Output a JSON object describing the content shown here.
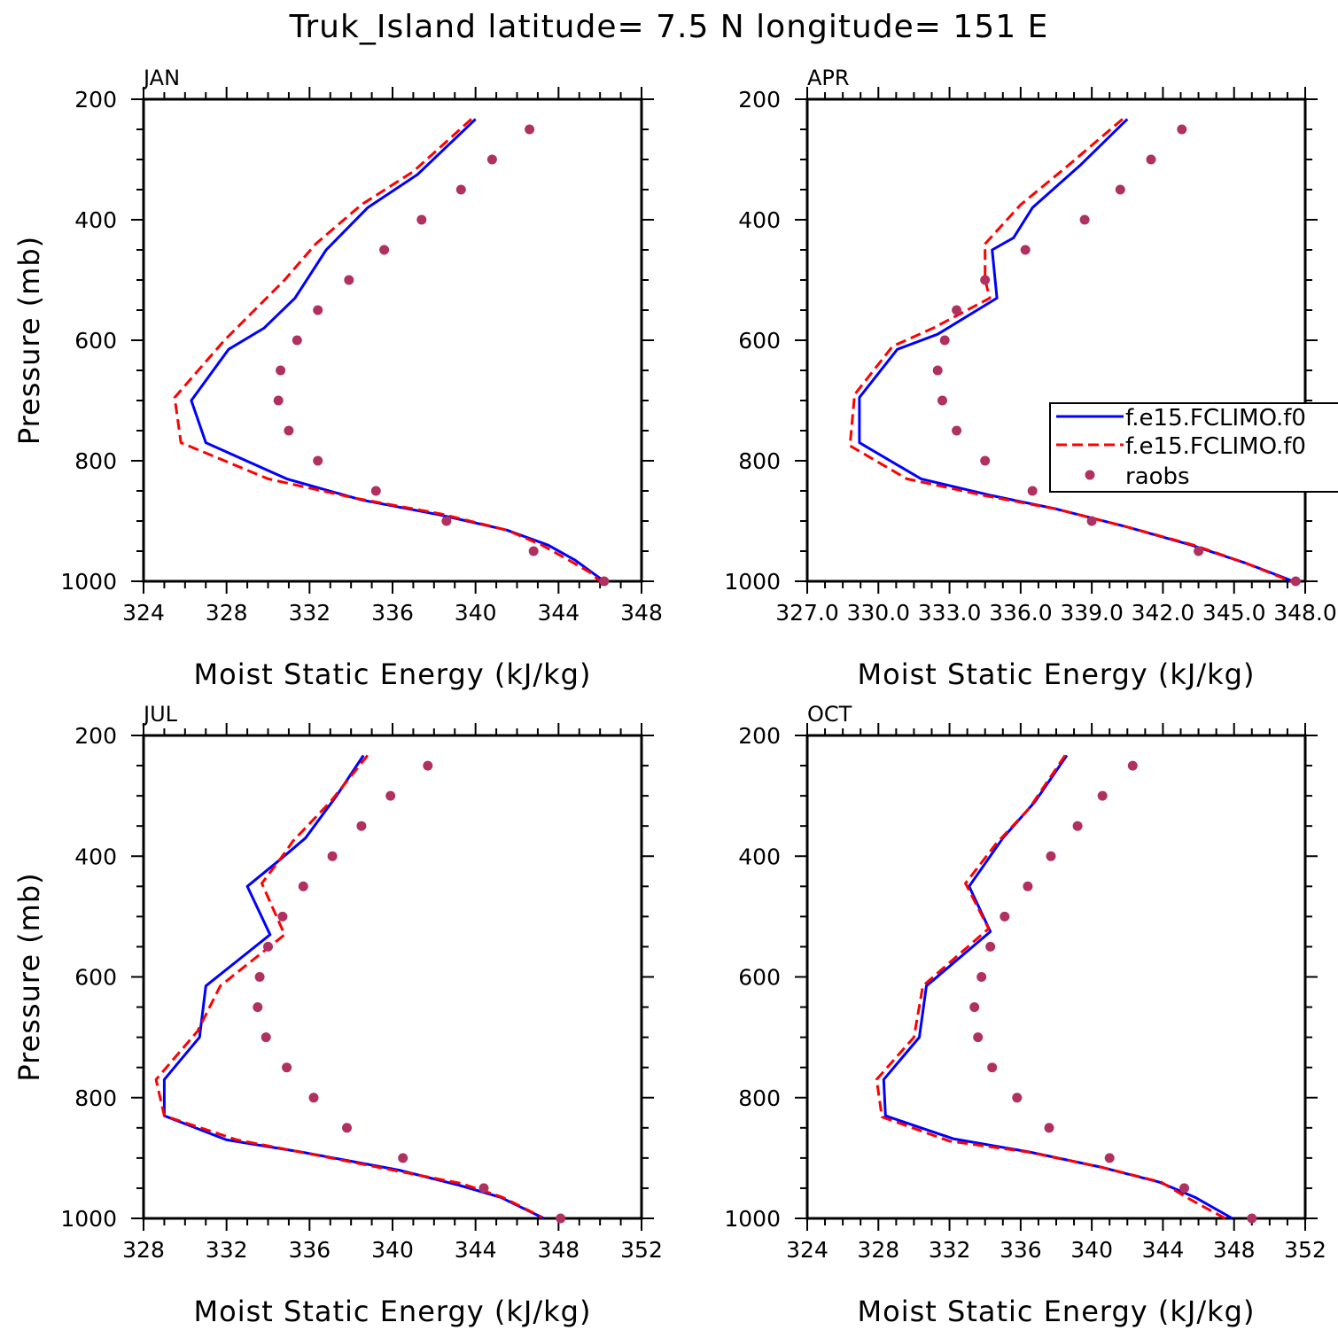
{
  "title": "Truk_Island  latitude= 7.5 N longitude= 151 E",
  "colors": {
    "model1": "#0000ff",
    "model2": "#ff0000",
    "raobs": "#b03060",
    "axis": "#000000"
  },
  "legend": [
    "f.e15.FCLIMO.f0",
    "f.e15.FCLIMO.f0",
    "raobs"
  ],
  "chart_data": [
    {
      "type": "line",
      "panel": "JAN",
      "xlabel": "Moist Static Energy (kJ/kg)",
      "ylabel": "Pressure (mb)",
      "xlim": [
        324,
        348
      ],
      "xticks": [
        "324",
        "328",
        "332",
        "336",
        "340",
        "344",
        "348"
      ],
      "ylim": [
        1000,
        200
      ],
      "yticks": [
        "200",
        "400",
        "600",
        "800",
        "1000"
      ],
      "series": [
        {
          "points": [
            [
              340.0,
              233
            ],
            [
              337.2,
              325
            ],
            [
              334.8,
              380
            ],
            [
              332.8,
              450
            ],
            [
              331.3,
              530
            ],
            [
              329.8,
              580
            ],
            [
              328.1,
              615
            ],
            [
              326.3,
              700
            ],
            [
              327.0,
              770
            ],
            [
              330.9,
              830
            ],
            [
              334.5,
              865
            ],
            [
              338.3,
              890
            ],
            [
              341.5,
              915
            ],
            [
              343.5,
              940
            ],
            [
              344.8,
              965
            ],
            [
              345.6,
              985
            ],
            [
              346.2,
              1000
            ]
          ]
        },
        {
          "points": [
            [
              339.8,
              233
            ],
            [
              337.0,
              320
            ],
            [
              334.5,
              375
            ],
            [
              332.3,
              440
            ],
            [
              330.8,
              500
            ],
            [
              329.2,
              555
            ],
            [
              327.9,
              600
            ],
            [
              325.5,
              695
            ],
            [
              325.8,
              770
            ],
            [
              330.0,
              830
            ],
            [
              334.2,
              862
            ],
            [
              338.3,
              888
            ],
            [
              341.5,
              915
            ],
            [
              343.2,
              940
            ],
            [
              344.5,
              965
            ],
            [
              345.5,
              985
            ],
            [
              346.0,
              1000
            ]
          ]
        },
        {
          "points": [
            [
              342.6,
              250
            ],
            [
              340.8,
              300
            ],
            [
              339.3,
              350
            ],
            [
              337.4,
              400
            ],
            [
              335.6,
              450
            ],
            [
              333.9,
              500
            ],
            [
              332.4,
              550
            ],
            [
              331.4,
              600
            ],
            [
              330.6,
              650
            ],
            [
              330.5,
              700
            ],
            [
              331.0,
              750
            ],
            [
              332.4,
              800
            ],
            [
              335.2,
              850
            ],
            [
              338.6,
              900
            ],
            [
              342.8,
              950
            ],
            [
              346.2,
              1000
            ]
          ]
        }
      ]
    },
    {
      "type": "line",
      "panel": "APR",
      "xlabel": "Moist Static Energy (kJ/kg)",
      "ylabel": "",
      "xlim": [
        327,
        348
      ],
      "xticks": [
        "327.0",
        "330.0",
        "333.0",
        "336.0",
        "339.0",
        "342.0",
        "345.0",
        "348.0"
      ],
      "ylim": [
        1000,
        200
      ],
      "yticks": [
        "200",
        "400",
        "600",
        "800",
        "1000"
      ],
      "series": [
        {
          "points": [
            [
              340.5,
              233
            ],
            [
              338.5,
              310
            ],
            [
              336.5,
              380
            ],
            [
              335.7,
              430
            ],
            [
              334.8,
              450
            ],
            [
              335.0,
              530
            ],
            [
              332.5,
              590
            ],
            [
              330.8,
              615
            ],
            [
              329.2,
              695
            ],
            [
              329.2,
              770
            ],
            [
              331.8,
              830
            ],
            [
              334.8,
              858
            ],
            [
              337.5,
              880
            ],
            [
              340.5,
              910
            ],
            [
              343.2,
              940
            ],
            [
              345.5,
              970
            ],
            [
              347.5,
              1000
            ]
          ]
        },
        {
          "points": [
            [
              340.3,
              233
            ],
            [
              338.0,
              310
            ],
            [
              336.0,
              375
            ],
            [
              334.5,
              440
            ],
            [
              334.5,
              500
            ],
            [
              334.7,
              530
            ],
            [
              332.3,
              580
            ],
            [
              330.6,
              610
            ],
            [
              329.0,
              690
            ],
            [
              328.8,
              775
            ],
            [
              331.2,
              830
            ],
            [
              334.5,
              858
            ],
            [
              337.5,
              880
            ],
            [
              340.5,
              910
            ],
            [
              343.3,
              940
            ],
            [
              345.5,
              970
            ],
            [
              347.4,
              1000
            ]
          ]
        },
        {
          "points": [
            [
              342.8,
              250
            ],
            [
              341.5,
              300
            ],
            [
              340.2,
              350
            ],
            [
              338.7,
              400
            ],
            [
              336.2,
              450
            ],
            [
              334.5,
              500
            ],
            [
              333.3,
              550
            ],
            [
              332.8,
              600
            ],
            [
              332.5,
              650
            ],
            [
              332.7,
              700
            ],
            [
              333.3,
              750
            ],
            [
              334.5,
              800
            ],
            [
              336.5,
              850
            ],
            [
              339.0,
              900
            ],
            [
              343.5,
              950
            ],
            [
              347.6,
              1000
            ]
          ]
        }
      ]
    },
    {
      "type": "line",
      "panel": "JUL",
      "xlabel": "Moist Static Energy (kJ/kg)",
      "ylabel": "Pressure (mb)",
      "xlim": [
        328,
        352
      ],
      "xticks": [
        "328",
        "332",
        "336",
        "340",
        "344",
        "348",
        "352"
      ],
      "ylim": [
        1000,
        200
      ],
      "yticks": [
        "200",
        "400",
        "600",
        "800",
        "1000"
      ],
      "series": [
        {
          "points": [
            [
              338.6,
              233
            ],
            [
              337.3,
              300
            ],
            [
              335.8,
              370
            ],
            [
              334.6,
              405
            ],
            [
              333.0,
              450
            ],
            [
              334.1,
              530
            ],
            [
              331.0,
              615
            ],
            [
              330.7,
              700
            ],
            [
              329.0,
              770
            ],
            [
              329.0,
              830
            ],
            [
              332.0,
              870
            ],
            [
              335.6,
              890
            ],
            [
              340.3,
              920
            ],
            [
              343.2,
              945
            ],
            [
              345.2,
              965
            ],
            [
              347.3,
              1000
            ]
          ]
        },
        {
          "points": [
            [
              338.8,
              233
            ],
            [
              337.0,
              310
            ],
            [
              335.2,
              375
            ],
            [
              334.8,
              395
            ],
            [
              333.7,
              445
            ],
            [
              334.8,
              530
            ],
            [
              331.7,
              615
            ],
            [
              330.6,
              690
            ],
            [
              328.6,
              770
            ],
            [
              329.0,
              830
            ],
            [
              332.5,
              870
            ],
            [
              336.0,
              893
            ],
            [
              340.0,
              920
            ],
            [
              343.3,
              942
            ],
            [
              345.3,
              965
            ],
            [
              347.2,
              998
            ]
          ]
        },
        {
          "points": [
            [
              341.7,
              250
            ],
            [
              339.9,
              300
            ],
            [
              338.5,
              350
            ],
            [
              337.1,
              400
            ],
            [
              335.7,
              450
            ],
            [
              334.7,
              500
            ],
            [
              334.0,
              550
            ],
            [
              333.6,
              600
            ],
            [
              333.5,
              650
            ],
            [
              333.9,
              700
            ],
            [
              334.9,
              750
            ],
            [
              336.2,
              800
            ],
            [
              337.8,
              850
            ],
            [
              340.5,
              900
            ],
            [
              344.4,
              950
            ],
            [
              348.1,
              1000
            ]
          ]
        }
      ]
    },
    {
      "type": "line",
      "panel": "OCT",
      "xlabel": "Moist Static Energy (kJ/kg)",
      "ylabel": "",
      "xlim": [
        324,
        352
      ],
      "xticks": [
        "324",
        "328",
        "332",
        "336",
        "340",
        "344",
        "348",
        "352"
      ],
      "ylim": [
        1000,
        200
      ],
      "yticks": [
        "200",
        "400",
        "600",
        "800",
        "1000"
      ],
      "series": [
        {
          "points": [
            [
              338.6,
              233
            ],
            [
              336.8,
              310
            ],
            [
              335.0,
              370
            ],
            [
              333.1,
              450
            ],
            [
              334.3,
              525
            ],
            [
              330.7,
              615
            ],
            [
              330.3,
              700
            ],
            [
              328.3,
              770
            ],
            [
              328.4,
              830
            ],
            [
              332.2,
              868
            ],
            [
              336.5,
              890
            ],
            [
              340.5,
              915
            ],
            [
              343.8,
              940
            ],
            [
              345.8,
              965
            ],
            [
              347.9,
              1000
            ]
          ]
        },
        {
          "points": [
            [
              338.5,
              233
            ],
            [
              336.5,
              320
            ],
            [
              334.6,
              380
            ],
            [
              332.9,
              445
            ],
            [
              334.2,
              520
            ],
            [
              330.5,
              615
            ],
            [
              330.0,
              700
            ],
            [
              327.9,
              770
            ],
            [
              328.2,
              832
            ],
            [
              332.0,
              872
            ],
            [
              336.4,
              890
            ],
            [
              340.5,
              915
            ],
            [
              343.9,
              940
            ],
            [
              345.5,
              968
            ],
            [
              347.5,
              1000
            ]
          ]
        },
        {
          "points": [
            [
              342.3,
              250
            ],
            [
              340.6,
              300
            ],
            [
              339.2,
              350
            ],
            [
              337.7,
              400
            ],
            [
              336.4,
              450
            ],
            [
              335.1,
              500
            ],
            [
              334.3,
              550
            ],
            [
              333.8,
              600
            ],
            [
              333.4,
              650
            ],
            [
              333.6,
              700
            ],
            [
              334.4,
              750
            ],
            [
              335.8,
              800
            ],
            [
              337.6,
              850
            ],
            [
              341.0,
              900
            ],
            [
              345.2,
              950
            ],
            [
              349.0,
              1000
            ]
          ]
        }
      ]
    }
  ]
}
